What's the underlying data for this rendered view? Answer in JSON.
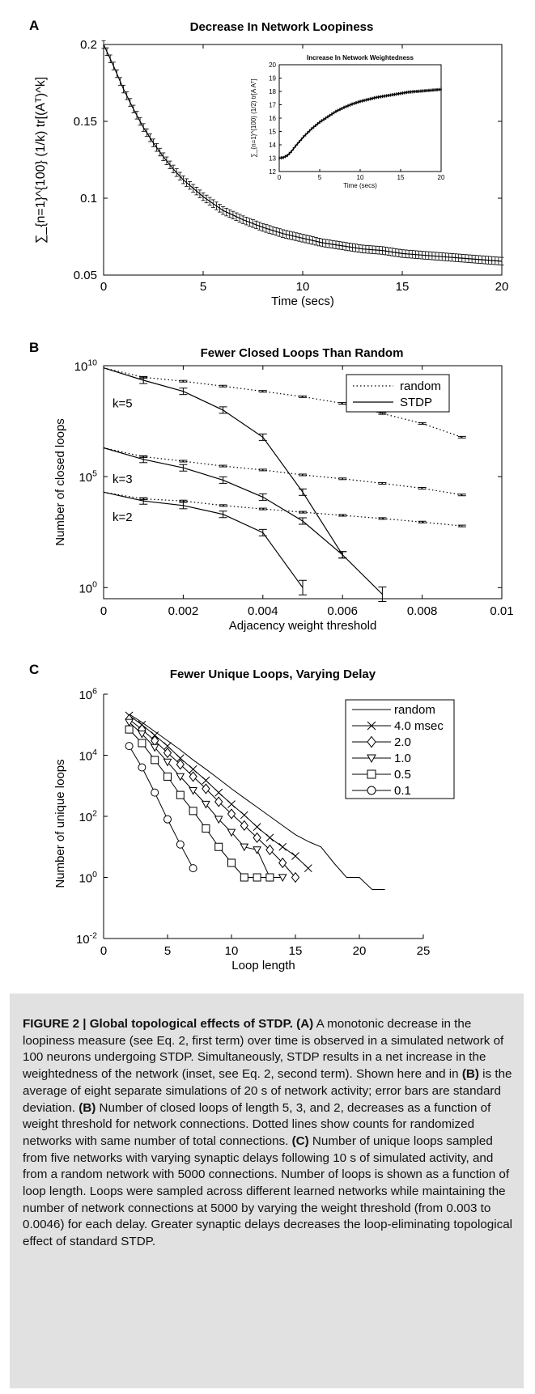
{
  "chart_data": [
    {
      "panel": "A",
      "type": "line",
      "title": "Decrease In Network Loopiness",
      "xlabel": "Time (secs)",
      "ylabel": "∑_{n=1}^{100} (1/k) tr[(Aᵀ)^k]",
      "xlim": [
        0,
        20
      ],
      "ylim": [
        0.05,
        0.2
      ],
      "xticks": [
        "0",
        "5",
        "10",
        "15",
        "20"
      ],
      "yticks": [
        "0.05",
        "0.1",
        "0.15",
        "0.2"
      ],
      "error_bars": true,
      "series": [
        {
          "x": [
            0,
            0.5,
            1,
            1.5,
            2,
            2.5,
            3,
            3.5,
            4,
            5,
            6,
            7,
            8,
            9,
            10,
            11,
            12,
            13,
            14,
            15,
            16,
            17,
            18,
            19,
            20
          ],
          "values": [
            0.2,
            0.186,
            0.171,
            0.158,
            0.146,
            0.136,
            0.127,
            0.119,
            0.112,
            0.101,
            0.092,
            0.086,
            0.081,
            0.077,
            0.074,
            0.071,
            0.069,
            0.067,
            0.066,
            0.064,
            0.063,
            0.062,
            0.061,
            0.06,
            0.059
          ]
        }
      ],
      "inset": {
        "title": "Increase In Network Weightedness",
        "xlabel": "Time (secs)",
        "ylabel": "∑_{n=1}^{100} (1/2) tr[A Aᵀ]",
        "xlim": [
          0,
          20
        ],
        "ylim": [
          12,
          20
        ],
        "xticks": [
          "0",
          "5",
          "10",
          "15",
          "20"
        ],
        "yticks": [
          "12",
          "13",
          "14",
          "15",
          "16",
          "17",
          "18",
          "19",
          "20"
        ],
        "series": [
          {
            "x": [
              0,
              0.5,
              1,
              1.5,
              2,
              3,
              4,
              5,
              6,
              7,
              8,
              9,
              10,
              12,
              14,
              16,
              18,
              20
            ],
            "values": [
              13.0,
              13.05,
              13.2,
              13.5,
              13.9,
              14.6,
              15.2,
              15.7,
              16.1,
              16.5,
              16.8,
              17.05,
              17.25,
              17.55,
              17.75,
              17.95,
              18.05,
              18.15
            ]
          }
        ]
      }
    },
    {
      "panel": "B",
      "type": "line",
      "title": "Fewer Closed Loops Than Random",
      "xlabel": "Adjacency weight threshold",
      "ylabel": "Number of closed loops",
      "yscale": "log",
      "xlim": [
        0,
        0.01
      ],
      "ylim": [
        0.5,
        10000000000.0
      ],
      "xticks": [
        "0",
        "0.002",
        "0.004",
        "0.006",
        "0.008",
        "0.01"
      ],
      "yticks": [
        "10^0",
        "10^5",
        "10^10"
      ],
      "legend": "top-right",
      "legend_entries": [
        "random",
        "STDP"
      ],
      "annotations": [
        "k=5",
        "k=3",
        "k=2"
      ],
      "series": [
        {
          "name": "random",
          "group": "k=5",
          "x": [
            0,
            0.001,
            0.002,
            0.003,
            0.004,
            0.005,
            0.006,
            0.007,
            0.008,
            0.009
          ],
          "values": [
            8000000000.0,
            3000000000.0,
            2000000000.0,
            1200000000.0,
            700000000.0,
            400000000.0,
            200000000.0,
            70000000.0,
            25000000.0,
            6000000.0
          ]
        },
        {
          "name": "STDP",
          "group": "k=5",
          "x": [
            0,
            0.001,
            0.002,
            0.003,
            0.004,
            0.005,
            0.006,
            0.007
          ],
          "values": [
            8000000000.0,
            2200000000.0,
            700000000.0,
            100000000.0,
            6000000.0,
            20000.0,
            30,
            0.5
          ]
        },
        {
          "name": "random",
          "group": "k=3",
          "x": [
            0,
            0.001,
            0.002,
            0.003,
            0.004,
            0.005,
            0.006,
            0.007,
            0.008,
            0.009
          ],
          "values": [
            2000000.0,
            800000.0,
            500000.0,
            300000.0,
            200000.0,
            120000.0,
            80000.0,
            50000.0,
            30000.0,
            15000.0
          ]
        },
        {
          "name": "STDP",
          "group": "k=3",
          "x": [
            0,
            0.001,
            0.002,
            0.003,
            0.004,
            0.005,
            0.006
          ],
          "values": [
            2000000.0,
            600000.0,
            250000.0,
            70000.0,
            12000.0,
            1000.0,
            30
          ]
        },
        {
          "name": "random",
          "group": "k=2",
          "x": [
            0,
            0.001,
            0.002,
            0.003,
            0.004,
            0.005,
            0.006,
            0.007,
            0.008,
            0.009
          ],
          "values": [
            20000.0,
            10000.0,
            8000.0,
            5000.0,
            3500.0,
            2500.0,
            1800.0,
            1300.0,
            900,
            600
          ]
        },
        {
          "name": "STDP",
          "group": "k=2",
          "x": [
            0,
            0.001,
            0.002,
            0.003,
            0.004,
            0.005
          ],
          "values": [
            20000.0,
            8000.0,
            5000.0,
            2000.0,
            300,
            1
          ]
        }
      ]
    },
    {
      "panel": "C",
      "type": "line",
      "title": "Fewer Unique Loops, Varying Delay",
      "xlabel": "Loop length",
      "ylabel": "Number of unique loops",
      "yscale": "log",
      "xlim": [
        0,
        25
      ],
      "ylim": [
        0.01,
        1000000.0
      ],
      "xticks": [
        "0",
        "5",
        "10",
        "15",
        "20",
        "25"
      ],
      "yticks": [
        "10^-2",
        "10^0",
        "10^2",
        "10^4",
        "10^6"
      ],
      "legend": "top-right",
      "legend_entries": [
        "random",
        "4.0 msec",
        "2.0",
        "1.0",
        "0.5",
        "0.1"
      ],
      "series": [
        {
          "name": "random",
          "marker": "none",
          "x": [
            2,
            3,
            4,
            5,
            6,
            7,
            8,
            9,
            10,
            11,
            12,
            13,
            14,
            15,
            16,
            17,
            18,
            19,
            20,
            21,
            22
          ],
          "values": [
            220000.0,
            120000.0,
            60000.0,
            30000.0,
            15000.0,
            7000.0,
            3500.0,
            1700.0,
            800,
            400,
            200,
            100,
            50,
            25,
            15,
            10,
            3,
            1,
            1,
            0.4,
            0.4
          ]
        },
        {
          "name": "4.0 msec",
          "marker": "x",
          "x": [
            2,
            3,
            4,
            5,
            6,
            7,
            8,
            9,
            10,
            11,
            12,
            13,
            14,
            15,
            16
          ],
          "values": [
            200000.0,
            100000.0,
            45000.0,
            20000.0,
            8000.0,
            3500.0,
            1500.0,
            600,
            250,
            110,
            45,
            20,
            10,
            5,
            2
          ]
        },
        {
          "name": "2.0",
          "marker": "diamond",
          "x": [
            2,
            3,
            4,
            5,
            6,
            7,
            8,
            9,
            10,
            11,
            12,
            13,
            14,
            15
          ],
          "values": [
            150000.0,
            70000.0,
            30000.0,
            12000.0,
            5000.0,
            2000.0,
            800,
            300,
            120,
            50,
            20,
            8,
            3,
            1
          ]
        },
        {
          "name": "1.0",
          "marker": "triangle-down",
          "x": [
            2,
            3,
            4,
            5,
            6,
            7,
            8,
            9,
            10,
            11,
            12,
            13,
            14
          ],
          "values": [
            120000.0,
            50000.0,
            18000.0,
            6000.0,
            2000.0,
            700,
            250,
            80,
            30,
            10,
            8,
            1,
            1
          ]
        },
        {
          "name": "0.5",
          "marker": "square",
          "x": [
            2,
            3,
            4,
            5,
            6,
            7,
            8,
            9,
            10,
            11,
            12,
            13
          ],
          "values": [
            70000.0,
            25000.0,
            7000.0,
            2000.0,
            500,
            150,
            40,
            10,
            3,
            1,
            1,
            1
          ]
        },
        {
          "name": "0.1",
          "marker": "circle",
          "x": [
            2,
            3,
            4,
            5,
            6,
            7
          ],
          "values": [
            20000.0,
            4000.0,
            600,
            80,
            12,
            2
          ]
        }
      ]
    }
  ],
  "caption": {
    "lead": "FIGURE 2 | Global topological effects of STDP.",
    "text": [
      {
        "t": " ",
        "b": false
      },
      {
        "t": "(A)",
        "b": true
      },
      {
        "t": " A monotonic decrease in the loopiness measure (see Eq. 2, first term) over time is observed in a simulated network of 100 neurons undergoing STDP. Simultaneously, STDP results in a net increase in the weightedness of the network (inset, see Eq. 2, second term). Shown here and in ",
        "b": false
      },
      {
        "t": "(B)",
        "b": true
      },
      {
        "t": " is the average of eight separate simulations of 20 s of network activity; error bars are standard deviation. ",
        "b": false
      },
      {
        "t": "(B)",
        "b": true
      },
      {
        "t": " Number of closed loops of length 5, 3, and 2, decreases as a function of weight threshold for network connections. Dotted lines show counts for randomized networks with same number of total connections. ",
        "b": false
      },
      {
        "t": "(C)",
        "b": true
      },
      {
        "t": " Number of unique loops sampled from five networks with varying synaptic delays following 10 s of simulated activity, and from a random network with 5000 connections. Number of loops is shown as a function of loop length. Loops were sampled across different learned networks while maintaining the number of network connections at 5000 by varying the weight threshold (from 0.003 to 0.0046) for each delay. Greater synaptic delays decreases the loop-eliminating topological effect of standard STDP.",
        "b": false
      }
    ]
  }
}
